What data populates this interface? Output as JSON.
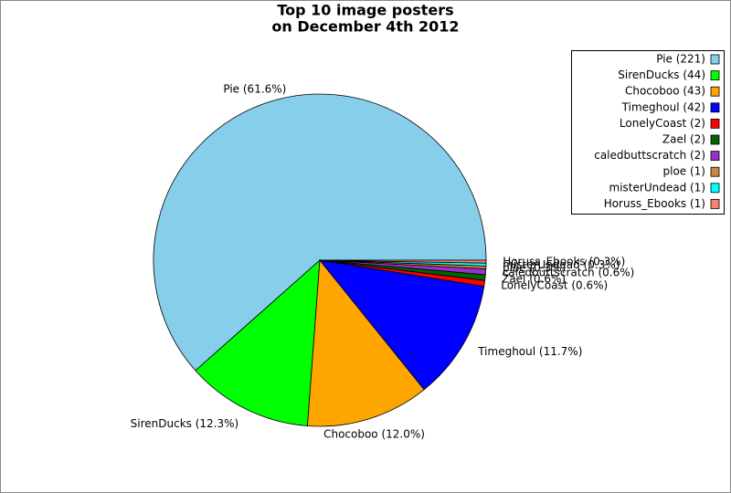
{
  "chart_data": {
    "type": "pie",
    "title": [
      "Top 10 image posters",
      "on December 4th 2012"
    ],
    "categories": [
      "Pie",
      "SirenDucks",
      "Chocoboo",
      "Timeghoul",
      "LonelyCoast",
      "Zael",
      "caledbuttscratch",
      "ploe",
      "misterUndead",
      "Horuss_Ebooks"
    ],
    "values": [
      221,
      44,
      43,
      42,
      2,
      2,
      2,
      1,
      1,
      1
    ],
    "legend_labels": [
      "Pie (221)",
      "SirenDucks (44)",
      "Chocoboo (43)",
      "Timeghoul (42)",
      "LonelyCoast (2)",
      "Zael (2)",
      "caledbuttscratch (2)",
      "ploe (1)",
      "misterUndead (1)",
      "Horuss_Ebooks (1)"
    ],
    "slice_labels": [
      "Pie (61.6%)",
      "SirenDucks (12.3%)",
      "Chocoboo (12.0%)",
      "Timeghoul (11.7%)",
      "LonelyCoast (0.6%)",
      "Zael (0.6%)",
      "caledbuttscratch (0.6%)",
      "ploe (0.3%)",
      "misterUndead (0.3%)",
      "Horuss_Ebooks (0.3%)"
    ],
    "colors": [
      "#87ceeb",
      "#00ff00",
      "#ffa500",
      "#0000ff",
      "#ff0000",
      "#006400",
      "#9932cc",
      "#cd853f",
      "#00ffff",
      "#fa8072"
    ],
    "legend_position": "upper right"
  }
}
